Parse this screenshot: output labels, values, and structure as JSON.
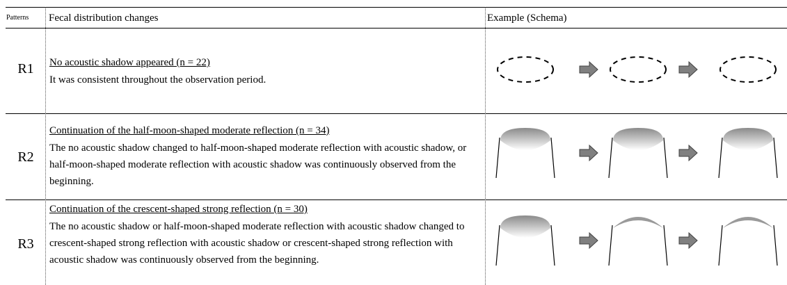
{
  "header": {
    "columns": [
      "Patterns",
      "Fecal distribution changes",
      "Example (Schema)"
    ]
  },
  "rows": [
    {
      "pattern": "R1",
      "title": "No acoustic shadow appeared (n = 22)",
      "description": "It was consistent throughout the observation period."
    },
    {
      "pattern": "R2",
      "title": "Continuation of the half-moon-shaped moderate reflection (n = 34)",
      "description": "The no acoustic shadow changed to half-moon-shaped moderate reflection with acoustic shadow, or half-moon-shaped moderate reflection with acoustic shadow was continuously observed from the beginning."
    },
    {
      "pattern": "R3",
      "title": "Continuation of the crescent-shaped strong reflection (n = 30)",
      "description": "The no acoustic shadow or half-moon-shaped moderate reflection with acoustic shadow changed to crescent-shaped strong reflection with acoustic shadow or crescent-shaped strong reflection with acoustic shadow was continuously observed from the beginning."
    }
  ]
}
